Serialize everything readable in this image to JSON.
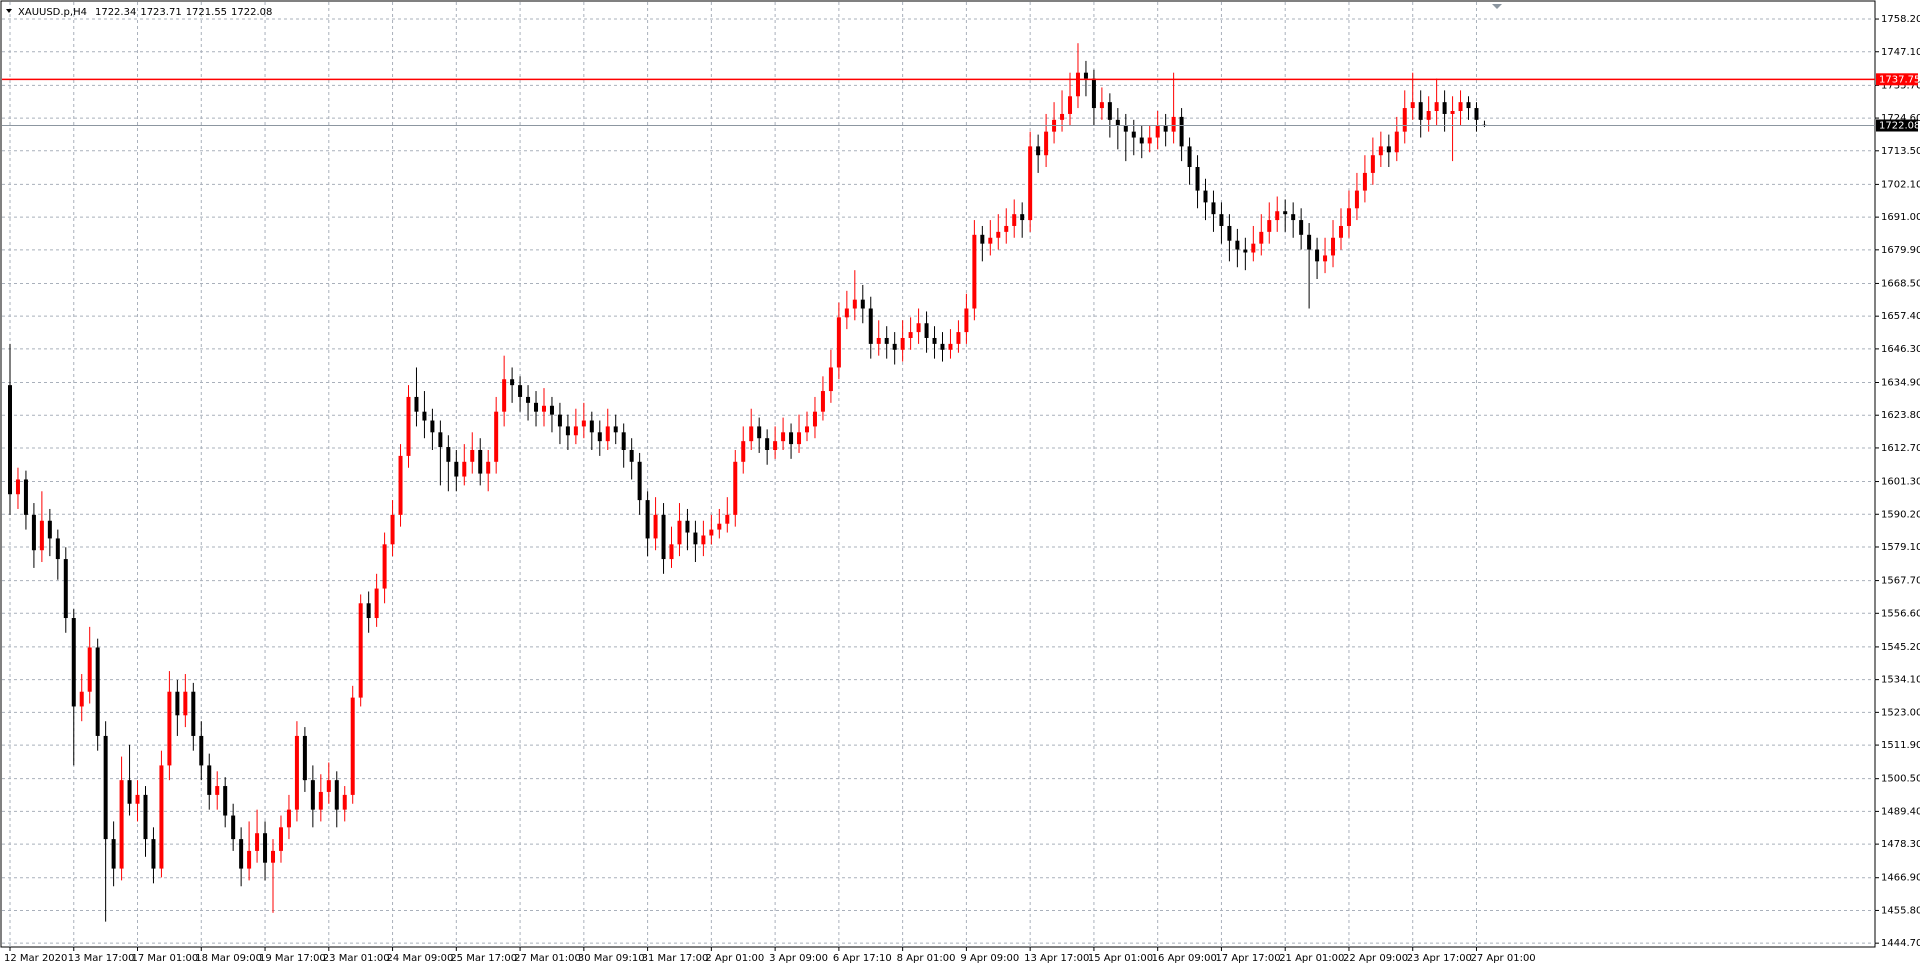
{
  "header": {
    "symbol": "XAUUSD.p,H4"
  },
  "chart_data": {
    "type": "candlestick",
    "categories": [
      "12 Mar 2020",
      null,
      null,
      null,
      null,
      null,
      null,
      null,
      "13 Mar 17:00",
      null,
      null,
      null,
      null,
      null,
      null,
      null,
      "17 Mar 01:00",
      null,
      null,
      null,
      null,
      null,
      null,
      null,
      "18 Mar 09:00",
      null,
      null,
      null,
      null,
      null,
      null,
      null,
      "19 Mar 17:00",
      null,
      null,
      null,
      null,
      null,
      null,
      null,
      "23 Mar 01:00",
      null,
      null,
      null,
      null,
      null,
      null,
      null,
      "24 Mar 09:00",
      null,
      null,
      null,
      null,
      null,
      null,
      null,
      "25 Mar 17:00",
      null,
      null,
      null,
      null,
      null,
      null,
      null,
      "27 Mar 01:00",
      null,
      null,
      null,
      null,
      null,
      null,
      null,
      "30 Mar 09:10",
      null,
      null,
      null,
      null,
      null,
      null,
      null,
      "31 Mar 17:00",
      null,
      null,
      null,
      null,
      null,
      null,
      null,
      "2 Apr 01:00",
      null,
      null,
      null,
      null,
      null,
      null,
      null,
      "3 Apr 09:00",
      null,
      null,
      null,
      null,
      null,
      null,
      null,
      "6 Apr 17:10",
      null,
      null,
      null,
      null,
      null,
      null,
      null,
      "8 Apr 01:00",
      null,
      null,
      null,
      null,
      null,
      null,
      null,
      "9 Apr 09:00",
      null,
      null,
      null,
      null,
      null,
      null,
      null,
      "13 Apr 17:00",
      null,
      null,
      null,
      null,
      null,
      null,
      null,
      "15 Apr 01:00",
      null,
      null,
      null,
      null,
      null,
      null,
      null,
      "16 Apr 09:00",
      null,
      null,
      null,
      null,
      null,
      null,
      null,
      "17 Apr 17:00",
      null,
      null,
      null,
      null,
      null,
      null,
      null,
      "21 Apr 01:00",
      null,
      null,
      null,
      null,
      null,
      null,
      null,
      "22 Apr 09:00",
      null,
      null,
      null,
      null,
      null,
      null,
      null,
      "23 Apr 17:00",
      null,
      null,
      null,
      null,
      null,
      null,
      null,
      "27 Apr 01:00",
      null
    ],
    "candles": [
      [
        1634,
        1648,
        1590,
        1597
      ],
      [
        1597,
        1606,
        1592,
        1602
      ],
      [
        1602,
        1605,
        1585,
        1590
      ],
      [
        1590,
        1594,
        1572,
        1578
      ],
      [
        1578,
        1598,
        1574,
        1588
      ],
      [
        1588,
        1592,
        1576,
        1582
      ],
      [
        1582,
        1585,
        1568,
        1575
      ],
      [
        1575,
        1579,
        1550,
        1555
      ],
      [
        1555,
        1558,
        1505,
        1525
      ],
      [
        1525,
        1536,
        1520,
        1530
      ],
      [
        1530,
        1552,
        1526,
        1545
      ],
      [
        1545,
        1548,
        1510,
        1515
      ],
      [
        1515,
        1520,
        1452,
        1480
      ],
      [
        1480,
        1486,
        1464,
        1470
      ],
      [
        1470,
        1508,
        1466,
        1500
      ],
      [
        1500,
        1512,
        1488,
        1492
      ],
      [
        1492,
        1500,
        1486,
        1495
      ],
      [
        1495,
        1498,
        1474,
        1480
      ],
      [
        1480,
        1484,
        1465,
        1470
      ],
      [
        1470,
        1510,
        1467,
        1505
      ],
      [
        1505,
        1537,
        1500,
        1530
      ],
      [
        1530,
        1534,
        1515,
        1522
      ],
      [
        1522,
        1536,
        1518,
        1530
      ],
      [
        1530,
        1533,
        1510,
        1515
      ],
      [
        1515,
        1520,
        1500,
        1505
      ],
      [
        1505,
        1509,
        1490,
        1495
      ],
      [
        1495,
        1503,
        1490,
        1498
      ],
      [
        1498,
        1501,
        1484,
        1488
      ],
      [
        1488,
        1492,
        1476,
        1480
      ],
      [
        1480,
        1484,
        1464,
        1470
      ],
      [
        1470,
        1486,
        1466,
        1476
      ],
      [
        1476,
        1490,
        1472,
        1482
      ],
      [
        1482,
        1486,
        1466,
        1472
      ],
      [
        1472,
        1480,
        1455,
        1476
      ],
      [
        1476,
        1488,
        1472,
        1484
      ],
      [
        1484,
        1495,
        1480,
        1490
      ],
      [
        1490,
        1520,
        1486,
        1515
      ],
      [
        1515,
        1518,
        1496,
        1500
      ],
      [
        1500,
        1505,
        1484,
        1490
      ],
      [
        1490,
        1502,
        1486,
        1496
      ],
      [
        1496,
        1506,
        1492,
        1500
      ],
      [
        1500,
        1503,
        1484,
        1490
      ],
      [
        1490,
        1498,
        1486,
        1495
      ],
      [
        1495,
        1532,
        1492,
        1528
      ],
      [
        1528,
        1563,
        1525,
        1560
      ],
      [
        1560,
        1564,
        1550,
        1555
      ],
      [
        1555,
        1570,
        1552,
        1565
      ],
      [
        1565,
        1584,
        1560,
        1580
      ],
      [
        1580,
        1595,
        1576,
        1590
      ],
      [
        1590,
        1614,
        1586,
        1610
      ],
      [
        1610,
        1634,
        1606,
        1630
      ],
      [
        1630,
        1640,
        1620,
        1625
      ],
      [
        1625,
        1632,
        1616,
        1622
      ],
      [
        1622,
        1626,
        1612,
        1618
      ],
      [
        1618,
        1622,
        1600,
        1613
      ],
      [
        1613,
        1617,
        1598,
        1608
      ],
      [
        1608,
        1612,
        1598,
        1603
      ],
      [
        1603,
        1614,
        1600,
        1608
      ],
      [
        1608,
        1618,
        1604,
        1612
      ],
      [
        1612,
        1616,
        1600,
        1604
      ],
      [
        1604,
        1612,
        1598,
        1608
      ],
      [
        1608,
        1630,
        1604,
        1625
      ],
      [
        1625,
        1644,
        1620,
        1636
      ],
      [
        1636,
        1640,
        1628,
        1634
      ],
      [
        1634,
        1637,
        1625,
        1630
      ],
      [
        1630,
        1634,
        1622,
        1628
      ],
      [
        1628,
        1632,
        1620,
        1625
      ],
      [
        1625,
        1633,
        1620,
        1627
      ],
      [
        1627,
        1630,
        1618,
        1624
      ],
      [
        1624,
        1628,
        1614,
        1620
      ],
      [
        1620,
        1624,
        1612,
        1617
      ],
      [
        1617,
        1626,
        1614,
        1620
      ],
      [
        1620,
        1628,
        1616,
        1622
      ],
      [
        1622,
        1625,
        1612,
        1618
      ],
      [
        1618,
        1622,
        1610,
        1615
      ],
      [
        1615,
        1626,
        1612,
        1620
      ],
      [
        1620,
        1624,
        1614,
        1618
      ],
      [
        1618,
        1621,
        1606,
        1612
      ],
      [
        1612,
        1616,
        1602,
        1608
      ],
      [
        1608,
        1611,
        1590,
        1595
      ],
      [
        1595,
        1598,
        1576,
        1582
      ],
      [
        1582,
        1596,
        1578,
        1590
      ],
      [
        1590,
        1594,
        1570,
        1575
      ],
      [
        1575,
        1586,
        1572,
        1580
      ],
      [
        1580,
        1594,
        1576,
        1588
      ],
      [
        1588,
        1592,
        1578,
        1584
      ],
      [
        1584,
        1588,
        1574,
        1580
      ],
      [
        1580,
        1588,
        1576,
        1583
      ],
      [
        1583,
        1590,
        1580,
        1585
      ],
      [
        1585,
        1592,
        1582,
        1587
      ],
      [
        1587,
        1596,
        1584,
        1590
      ],
      [
        1590,
        1612,
        1586,
        1608
      ],
      [
        1608,
        1620,
        1604,
        1615
      ],
      [
        1615,
        1626,
        1612,
        1620
      ],
      [
        1620,
        1623,
        1611,
        1616
      ],
      [
        1616,
        1619,
        1607,
        1612
      ],
      [
        1612,
        1620,
        1609,
        1615
      ],
      [
        1615,
        1623,
        1612,
        1618
      ],
      [
        1618,
        1621,
        1609,
        1614
      ],
      [
        1614,
        1624,
        1611,
        1618
      ],
      [
        1618,
        1625,
        1615,
        1620
      ],
      [
        1620,
        1630,
        1616,
        1625
      ],
      [
        1625,
        1637,
        1622,
        1632
      ],
      [
        1632,
        1646,
        1628,
        1640
      ],
      [
        1640,
        1662,
        1636,
        1657
      ],
      [
        1657,
        1666,
        1653,
        1660
      ],
      [
        1660,
        1673,
        1656,
        1663
      ],
      [
        1663,
        1668,
        1655,
        1660
      ],
      [
        1660,
        1664,
        1643,
        1648
      ],
      [
        1648,
        1656,
        1644,
        1650
      ],
      [
        1650,
        1654,
        1643,
        1648
      ],
      [
        1648,
        1652,
        1641,
        1646
      ],
      [
        1646,
        1656,
        1642,
        1650
      ],
      [
        1650,
        1657,
        1646,
        1652
      ],
      [
        1652,
        1660,
        1648,
        1655
      ],
      [
        1655,
        1659,
        1645,
        1650
      ],
      [
        1650,
        1654,
        1643,
        1648
      ],
      [
        1648,
        1652,
        1642,
        1646
      ],
      [
        1646,
        1653,
        1643,
        1648
      ],
      [
        1648,
        1656,
        1645,
        1652
      ],
      [
        1652,
        1665,
        1648,
        1660
      ],
      [
        1660,
        1690,
        1656,
        1685
      ],
      [
        1685,
        1688,
        1676,
        1682
      ],
      [
        1682,
        1690,
        1678,
        1684
      ],
      [
        1684,
        1692,
        1680,
        1686
      ],
      [
        1686,
        1694,
        1682,
        1688
      ],
      [
        1688,
        1697,
        1684,
        1692
      ],
      [
        1692,
        1696,
        1684,
        1690
      ],
      [
        1690,
        1720,
        1686,
        1715
      ],
      [
        1715,
        1719,
        1706,
        1712
      ],
      [
        1712,
        1726,
        1708,
        1720
      ],
      [
        1720,
        1730,
        1716,
        1724
      ],
      [
        1724,
        1734,
        1720,
        1726
      ],
      [
        1726,
        1740,
        1722,
        1732
      ],
      [
        1732,
        1750,
        1728,
        1740
      ],
      [
        1740,
        1744,
        1732,
        1738
      ],
      [
        1738,
        1741,
        1722,
        1728
      ],
      [
        1728,
        1735,
        1724,
        1730
      ],
      [
        1730,
        1733,
        1718,
        1724
      ],
      [
        1724,
        1728,
        1714,
        1722
      ],
      [
        1722,
        1726,
        1710,
        1720
      ],
      [
        1720,
        1724,
        1712,
        1718
      ],
      [
        1718,
        1722,
        1711,
        1716
      ],
      [
        1716,
        1722,
        1713,
        1718
      ],
      [
        1718,
        1727,
        1714,
        1722
      ],
      [
        1722,
        1726,
        1715,
        1720
      ],
      [
        1720,
        1740,
        1716,
        1725
      ],
      [
        1725,
        1728,
        1710,
        1715
      ],
      [
        1715,
        1718,
        1702,
        1708
      ],
      [
        1708,
        1712,
        1694,
        1700
      ],
      [
        1700,
        1704,
        1690,
        1696
      ],
      [
        1696,
        1700,
        1686,
        1692
      ],
      [
        1692,
        1696,
        1682,
        1688
      ],
      [
        1688,
        1692,
        1676,
        1683
      ],
      [
        1683,
        1687,
        1674,
        1680
      ],
      [
        1680,
        1684,
        1673,
        1679
      ],
      [
        1679,
        1688,
        1676,
        1682
      ],
      [
        1682,
        1692,
        1678,
        1686
      ],
      [
        1686,
        1696,
        1682,
        1690
      ],
      [
        1690,
        1698,
        1686,
        1693
      ],
      [
        1693,
        1697,
        1686,
        1692
      ],
      [
        1692,
        1696,
        1684,
        1690
      ],
      [
        1690,
        1694,
        1680,
        1685
      ],
      [
        1685,
        1689,
        1660,
        1680
      ],
      [
        1680,
        1684,
        1670,
        1676
      ],
      [
        1676,
        1684,
        1672,
        1678
      ],
      [
        1678,
        1690,
        1674,
        1684
      ],
      [
        1684,
        1694,
        1680,
        1688
      ],
      [
        1688,
        1700,
        1684,
        1694
      ],
      [
        1694,
        1706,
        1690,
        1700
      ],
      [
        1700,
        1712,
        1696,
        1706
      ],
      [
        1706,
        1718,
        1702,
        1712
      ],
      [
        1712,
        1720,
        1708,
        1715
      ],
      [
        1715,
        1719,
        1708,
        1713
      ],
      [
        1713,
        1725,
        1710,
        1720
      ],
      [
        1720,
        1734,
        1716,
        1728
      ],
      [
        1728,
        1740,
        1724,
        1730
      ],
      [
        1730,
        1734,
        1718,
        1724
      ],
      [
        1724,
        1732,
        1720,
        1727
      ],
      [
        1727,
        1738,
        1722,
        1730
      ],
      [
        1730,
        1734,
        1720,
        1726
      ],
      [
        1726,
        1732,
        1710,
        1727
      ],
      [
        1727,
        1734,
        1722,
        1730
      ],
      [
        1730,
        1732,
        1724,
        1728
      ],
      [
        1728,
        1730,
        1720,
        1724
      ],
      [
        1722.34,
        1723.71,
        1721.55,
        1722.08
      ]
    ],
    "up_color": "#ff0000",
    "down_color": "#000000",
    "ylim": [
      1443.4,
      1763.3
    ],
    "yticks": [
      {
        "value": 1758.2,
        "label": "1758.20"
      },
      {
        "value": 1747.1,
        "label": "1747.10"
      },
      {
        "value": 1735.7,
        "label": "1735.70"
      },
      {
        "value": 1724.6,
        "label": "1724.60"
      },
      {
        "value": 1713.5,
        "label": "1713.50"
      },
      {
        "value": 1702.1,
        "label": "1702.10"
      },
      {
        "value": 1691,
        "label": "1691.00"
      },
      {
        "value": 1679.9,
        "label": "1679.90"
      },
      {
        "value": 1668.5,
        "label": "1668.50"
      },
      {
        "value": 1657.4,
        "label": "1657.40"
      },
      {
        "value": 1646.3,
        "label": "1646.30"
      },
      {
        "value": 1634.9,
        "label": "1634.90"
      },
      {
        "value": 1623.8,
        "label": "1623.80"
      },
      {
        "value": 1612.7,
        "label": "1612.70"
      },
      {
        "value": 1601.3,
        "label": "1601.30"
      },
      {
        "value": 1590.2,
        "label": "1590.20"
      },
      {
        "value": 1579.1,
        "label": "1579.10"
      },
      {
        "value": 1567.7,
        "label": "1567.70"
      },
      {
        "value": 1556.6,
        "label": "1556.60"
      },
      {
        "value": 1545.2,
        "label": "1545.20"
      },
      {
        "value": 1534.1,
        "label": "1534.10"
      },
      {
        "value": 1523,
        "label": "1523.00"
      },
      {
        "value": 1511.9,
        "label": "1511.90"
      },
      {
        "value": 1500.5,
        "label": "1500.50"
      },
      {
        "value": 1489.4,
        "label": "1489.40"
      },
      {
        "value": 1478.3,
        "label": "1478.30"
      },
      {
        "value": 1466.9,
        "label": "1466.90"
      },
      {
        "value": 1455.8,
        "label": "1455.80"
      },
      {
        "value": 1444.7,
        "label": "1444.70"
      }
    ],
    "grid": true,
    "levels": [
      {
        "value": 1737.75,
        "color": "#ff0000"
      }
    ],
    "price_line_color": "#8c96a0",
    "price_label_color": "#000000"
  }
}
